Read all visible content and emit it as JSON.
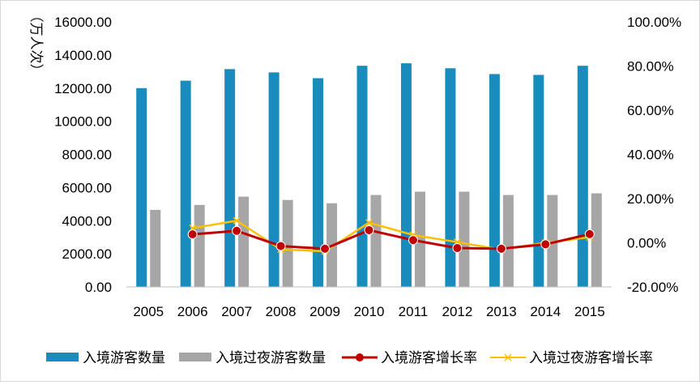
{
  "chart_data": {
    "type": "bar",
    "categories": [
      "2005",
      "2006",
      "2007",
      "2008",
      "2009",
      "2010",
      "2011",
      "2012",
      "2013",
      "2014",
      "2015"
    ],
    "ylabel": "（万人次）",
    "y_left": {
      "min": 0,
      "max": 16000,
      "step": 2000,
      "tick_labels": [
        "0.00",
        "2000.00",
        "4000.00",
        "6000.00",
        "8000.00",
        "10000.00",
        "12000.00",
        "14000.00",
        "16000.00"
      ]
    },
    "y_right": {
      "min": -20,
      "max": 100,
      "step": 20,
      "tick_labels": [
        "-20.00%",
        "0.00%",
        "20.00%",
        "40.00%",
        "60.00%",
        "80.00%",
        "100.00%"
      ]
    },
    "grid": false,
    "legend_position": "bottom",
    "series": [
      {
        "name": "入境游客数量",
        "kind": "bar",
        "axis": "left",
        "color": "#1a8bbd",
        "values": [
          12000,
          12450,
          13150,
          12950,
          12600,
          13350,
          13500,
          13200,
          12850,
          12800,
          13350
        ]
      },
      {
        "name": "入境过夜游客数量",
        "kind": "bar",
        "axis": "left",
        "color": "#a6a6a6",
        "values": [
          4650,
          4950,
          5450,
          5250,
          5050,
          5550,
          5750,
          5750,
          5550,
          5550,
          5650
        ]
      },
      {
        "name": "入境游客增长率",
        "kind": "line",
        "axis": "right",
        "color": "#c00000",
        "marker": "circle",
        "values": [
          null,
          3.8,
          5.4,
          -1.5,
          -2.7,
          5.7,
          1.2,
          -2.4,
          -2.7,
          -0.7,
          3.9
        ]
      },
      {
        "name": "入境过夜游客增长率",
        "kind": "line",
        "axis": "right",
        "color": "#ffc000",
        "marker": "x",
        "values": [
          null,
          6.6,
          10.0,
          -3.0,
          -3.9,
          9.1,
          3.5,
          0.3,
          -3.1,
          0.0,
          2.5
        ]
      }
    ]
  }
}
